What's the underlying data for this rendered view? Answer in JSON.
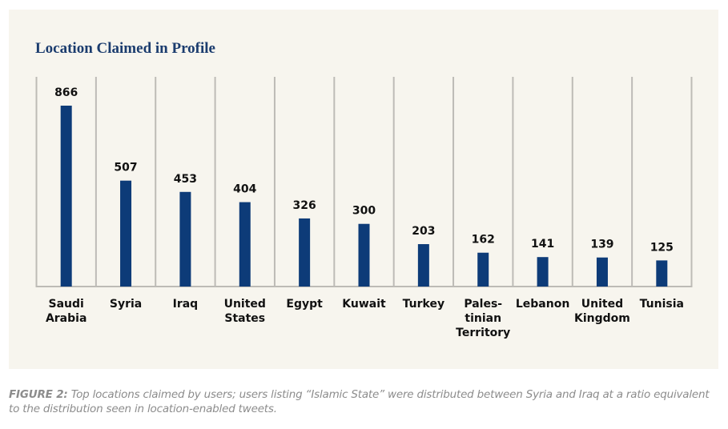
{
  "chart_data": {
    "type": "bar",
    "title": "Location Claimed in Profile",
    "categories": [
      [
        "Saudi",
        "Arabia"
      ],
      [
        "Syria"
      ],
      [
        "Iraq"
      ],
      [
        "United",
        "States"
      ],
      [
        "Egypt"
      ],
      [
        "Kuwait"
      ],
      [
        "Turkey"
      ],
      [
        "Pales-",
        "tinian",
        "Territory"
      ],
      [
        "Lebanon"
      ],
      [
        "United",
        "Kingdom"
      ],
      [
        "Tunisia"
      ]
    ],
    "values": [
      866,
      507,
      453,
      404,
      326,
      300,
      203,
      162,
      141,
      139,
      125
    ],
    "xlabel": "",
    "ylabel": "",
    "ylim": [
      0,
      866
    ],
    "grid": "vertical separators",
    "data_labels": true,
    "bar_color": "#0d3b78"
  },
  "caption": {
    "label": "FIGURE 2:",
    "text": " Top locations claimed by users; users listing “Islamic State” were distributed between Syria and Iraq at a ratio equivalent to the distribution seen in location-enabled tweets."
  }
}
